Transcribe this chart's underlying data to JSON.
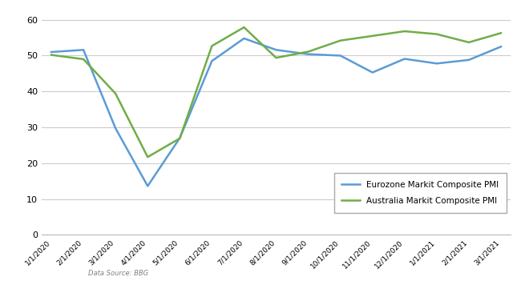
{
  "x_labels": [
    "1/1/2020",
    "2/1/2020",
    "3/1/2020",
    "4/1/2020",
    "5/1/2020",
    "6/1/2020",
    "7/1/2020",
    "8/1/2020",
    "9/1/2020",
    "10/1/2020",
    "11/1/2020",
    "12/1/2020",
    "1/1/2021",
    "2/1/2021",
    "3/1/2021"
  ],
  "eurozone": [
    51.0,
    51.6,
    29.7,
    13.6,
    27.0,
    48.5,
    54.8,
    51.6,
    50.4,
    50.0,
    45.3,
    49.1,
    47.8,
    48.8,
    52.5
  ],
  "australia": [
    50.2,
    49.0,
    39.4,
    21.7,
    26.9,
    52.7,
    57.9,
    49.4,
    51.1,
    54.2,
    55.5,
    56.8,
    56.0,
    53.7,
    56.3
  ],
  "eurozone_color": "#5B9BD5",
  "australia_color": "#70AD47",
  "legend_eurozone": "Eurozone Markit Composite PMI",
  "legend_australia": "Australia Markit Composite PMI",
  "yticks": [
    0,
    10,
    20,
    30,
    40,
    50,
    60
  ],
  "ylim": [
    0,
    63
  ],
  "source_text": "Data Source: BBG",
  "bg_color": "#FFFFFF",
  "grid_color": "#CCCCCC",
  "line_width": 1.8
}
